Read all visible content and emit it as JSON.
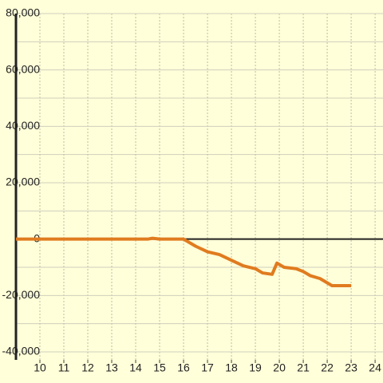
{
  "chart_data": {
    "type": "line",
    "x": [
      9,
      14.5,
      14.7,
      15,
      16,
      16.5,
      17,
      17.5,
      18,
      18.5,
      19,
      19.3,
      19.7,
      19.9,
      20.2,
      20.7,
      21,
      21.3,
      21.7,
      22.2,
      23
    ],
    "series": [
      {
        "color": "#e07b1f",
        "values": [
          0,
          0,
          300,
          0,
          0,
          -2500,
          -4500,
          -5500,
          -7500,
          -9500,
          -10500,
          -12000,
          -12500,
          -8500,
          -10000,
          -10500,
          -11500,
          -13000,
          -14000,
          -16500,
          -16500
        ]
      }
    ],
    "xlim": [
      9,
      24.33
    ],
    "xticks": [
      10,
      11,
      12,
      13,
      14,
      15,
      16,
      17,
      18,
      19,
      20,
      21,
      22,
      23,
      24
    ],
    "ylim": [
      -40000,
      80000
    ],
    "yticks": [
      {
        "value": -40000,
        "label": "-40,000"
      },
      {
        "value": -20000,
        "label": "-20,000"
      },
      0,
      {
        "value": 20000,
        "label": "20,000"
      },
      {
        "value": 40000,
        "label": "40,000"
      },
      {
        "value": 60000,
        "label": "60,000"
      },
      {
        "value": 80000,
        "label": "80,000"
      }
    ],
    "grid": true
  }
}
